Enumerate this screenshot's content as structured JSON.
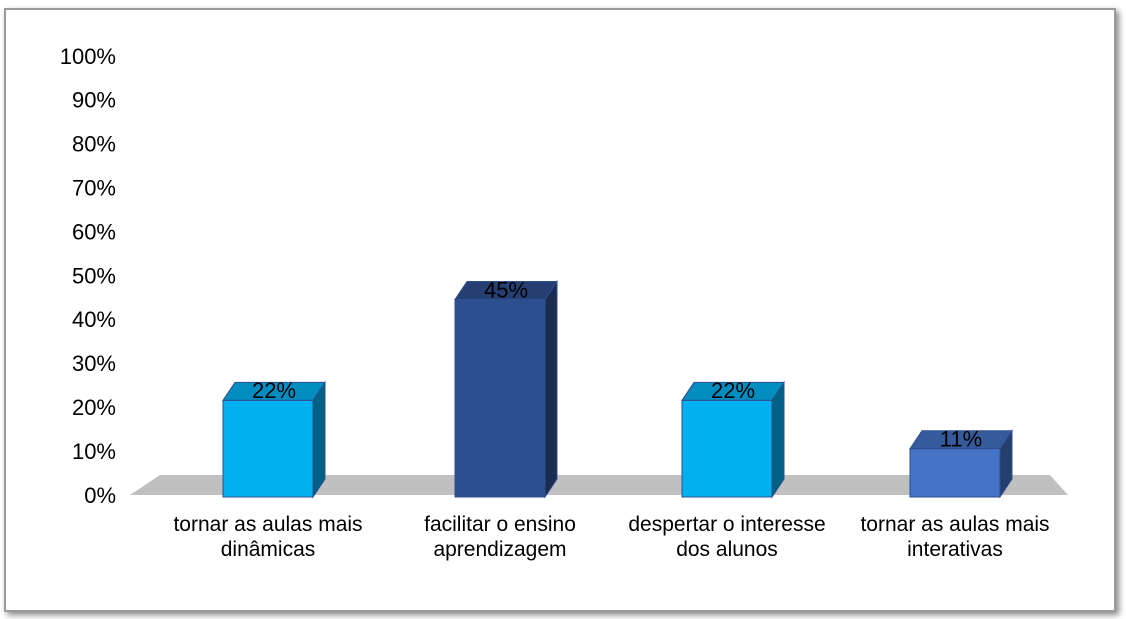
{
  "chart_data": {
    "type": "bar3d",
    "categories": [
      "tornar as aulas mais dinâmicas",
      "facilitar o ensino aprendizagem",
      "despertar o interesse dos alunos",
      "tornar as aulas mais interativas"
    ],
    "values": [
      22,
      45,
      22,
      11
    ],
    "value_labels": [
      "22%",
      "45%",
      "22%",
      "11%"
    ],
    "colors": [
      "#00b0f0",
      "#2e4f8f",
      "#00b0f0",
      "#4472c4"
    ],
    "ylim": [
      0,
      100
    ],
    "yticks": [
      {
        "value": 0,
        "label": "0%"
      },
      {
        "value": 10,
        "label": "10%"
      },
      {
        "value": 20,
        "label": "20%"
      },
      {
        "value": 30,
        "label": "30%"
      },
      {
        "value": 40,
        "label": "40%"
      },
      {
        "value": 50,
        "label": "50%"
      },
      {
        "value": 60,
        "label": "60%"
      },
      {
        "value": 70,
        "label": "70%"
      },
      {
        "value": 80,
        "label": "80%"
      },
      {
        "value": 90,
        "label": "90%"
      },
      {
        "value": 100,
        "label": "100%"
      }
    ],
    "grid": false
  }
}
